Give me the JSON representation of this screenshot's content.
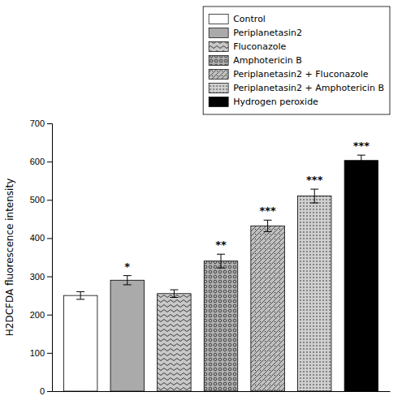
{
  "chart_data": {
    "type": "bar",
    "ylabel": "H2DCFDA fluorescence intensity",
    "categories": [
      "Control",
      "Periplanetasin2",
      "Fluconazole",
      "Amphotericin B",
      "Periplanetasin2 + Fluconazole",
      "Periplanetasin2 + Amphotericin B",
      "Hydrogen peroxide"
    ],
    "values": [
      250,
      290,
      255,
      340,
      432,
      510,
      603
    ],
    "errors": [
      10,
      12,
      10,
      18,
      15,
      18,
      14
    ],
    "significance": [
      null,
      "*",
      null,
      "**",
      "***",
      "***",
      "***"
    ],
    "colors": [
      "white",
      "#aaaaaa",
      "#c8c8c8",
      "#b0b0b0",
      "#c0c0c0",
      "#d0d0d0",
      "black"
    ],
    "ylim": [
      0,
      700
    ],
    "yticks": [
      0,
      100,
      200,
      300,
      400,
      500,
      600,
      700
    ],
    "grid": false,
    "legend": "upper right",
    "tick_labels": "y"
  }
}
